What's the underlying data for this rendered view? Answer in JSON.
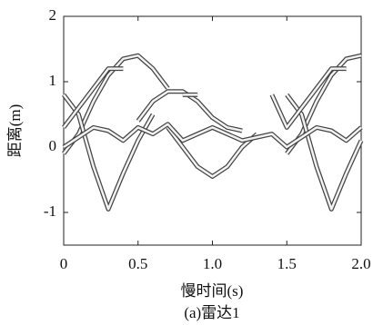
{
  "chart_data": {
    "type": "line",
    "x_label": "慢时间(s)",
    "y_label": "距离(m)",
    "caption": "(a)雷达1",
    "x": [
      0,
      0.1,
      0.2,
      0.3,
      0.4,
      0.5,
      0.6,
      0.7,
      0.8,
      0.9,
      1.0,
      1.1,
      1.2,
      1.3,
      1.4,
      1.5,
      1.6,
      1.7,
      1.8,
      1.9,
      2.0
    ],
    "series": [
      {
        "color": "#444444",
        "values": [
          -0.1,
          0.2,
          0.7,
          1.1,
          1.35,
          1.4,
          1.2,
          0.9,
          null,
          null,
          null,
          null,
          null,
          null,
          null,
          -0.1,
          0.2,
          0.7,
          1.1,
          1.35,
          1.4
        ]
      },
      {
        "color": "#444444",
        "values": [
          0.8,
          0.5,
          -0.3,
          -0.95,
          -0.4,
          0.1,
          0.5,
          null,
          null,
          null,
          null,
          null,
          null,
          null,
          null,
          0.8,
          0.5,
          -0.3,
          -0.95,
          -0.4,
          0.1
        ]
      },
      {
        "color": "#444444",
        "values": [
          null,
          null,
          null,
          null,
          null,
          0.4,
          0.7,
          0.85,
          0.85,
          0.7,
          0.45,
          0.3,
          0.25,
          null,
          null,
          null,
          null,
          null,
          null,
          null,
          null
        ]
      },
      {
        "color": "#444444",
        "values": [
          null,
          null,
          null,
          null,
          null,
          null,
          null,
          0.3,
          0,
          -0.3,
          -0.45,
          -0.3,
          0,
          0.2,
          null,
          null,
          null,
          null,
          null,
          null,
          null
        ]
      },
      {
        "color": "#444444",
        "values": [
          0,
          0.15,
          0.3,
          0.25,
          0.1,
          0.3,
          0.2,
          0.35,
          0.1,
          0.2,
          0.3,
          0.2,
          0.1,
          0.15,
          0.2,
          0,
          0.15,
          0.3,
          0.25,
          0.1,
          0.3
        ]
      },
      {
        "color": "#444444",
        "values": [
          0.3,
          0.6,
          0.9,
          1.2,
          1.2,
          null,
          null,
          null,
          0.8,
          0.8,
          null,
          null,
          null,
          null,
          0.8,
          0.3,
          0.6,
          0.9,
          1.2,
          1.2,
          null
        ]
      }
    ],
    "xlim": [
      0,
      2
    ],
    "xticks": [
      0,
      0.5,
      {
        "value": 1,
        "label": "1.0"
      },
      1.5,
      {
        "value": 2,
        "label": "2.0"
      }
    ],
    "ylim": [
      -1.5,
      2
    ],
    "yticks": [
      -1,
      0,
      1,
      2
    ]
  }
}
